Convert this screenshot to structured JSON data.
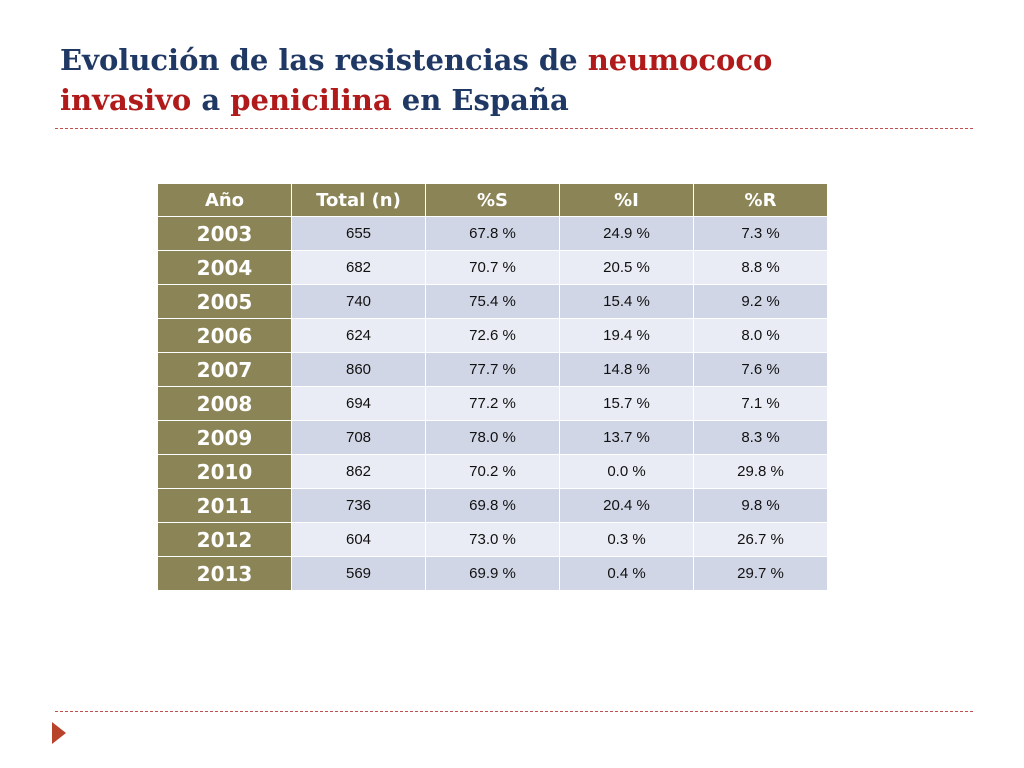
{
  "title": {
    "part1": "Evolución de las resistencias de ",
    "part2": "neumococo",
    "part3": "invasivo",
    "part4": " a ",
    "part5": "penicilina",
    "part6": " en España"
  },
  "table": {
    "headers": [
      "Año",
      "Total (n)",
      "%S",
      "%I",
      "%R"
    ],
    "rows": [
      [
        "2003",
        "655",
        "67.8 %",
        "24.9 %",
        "7.3 %"
      ],
      [
        "2004",
        "682",
        "70.7 %",
        "20.5 %",
        "8.8 %"
      ],
      [
        "2005",
        "740",
        "75.4 %",
        "15.4 %",
        "9.2 %"
      ],
      [
        "2006",
        "624",
        "72.6 %",
        "19.4 %",
        "8.0 %"
      ],
      [
        "2007",
        "860",
        "77.7 %",
        "14.8 %",
        "7.6 %"
      ],
      [
        "2008",
        "694",
        "77.2 %",
        "15.7 %",
        "7.1 %"
      ],
      [
        "2009",
        "708",
        "78.0 %",
        "13.7 %",
        "8.3 %"
      ],
      [
        "2010",
        "862",
        "70.2 %",
        "0.0 %",
        "29.8 %"
      ],
      [
        "2011",
        "736",
        "69.8 %",
        "20.4 %",
        "9.8 %"
      ],
      [
        "2012",
        "604",
        "73.0 %",
        "0.3 %",
        "26.7 %"
      ],
      [
        "2013",
        "569",
        "69.9 %",
        "0.4 %",
        "29.7 %"
      ]
    ]
  },
  "colors": {
    "title": "#1f3864",
    "highlight": "#b01a1a",
    "header_bg": "#8b8456",
    "row_odd": "#d1d6e6",
    "row_even": "#e9ecf4",
    "rule": "#c0504d"
  },
  "icons": {
    "nav": "triangle-right-icon"
  }
}
